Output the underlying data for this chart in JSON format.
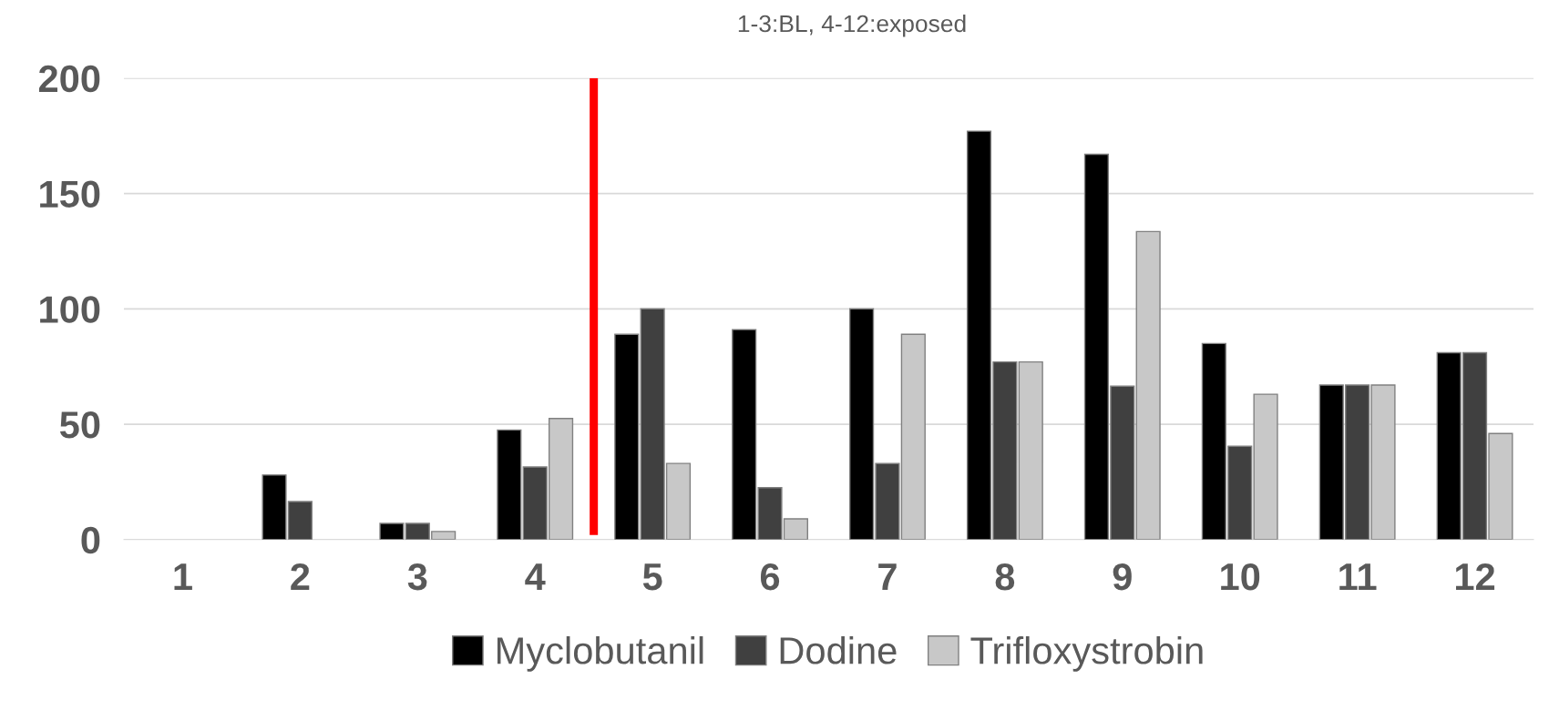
{
  "chart_data": {
    "type": "bar",
    "title": "1-3:BL, 4-12:exposed",
    "categories": [
      "1",
      "2",
      "3",
      "4",
      "5",
      "6",
      "7",
      "8",
      "9",
      "10",
      "11",
      "12"
    ],
    "series": [
      {
        "name": "Myclobutanil",
        "color": "#000000",
        "values": [
          null,
          28,
          7,
          47.5,
          89,
          91,
          100,
          177,
          167,
          85,
          67,
          81
        ]
      },
      {
        "name": "Dodine",
        "color": "#404040",
        "values": [
          null,
          16.5,
          7,
          31.5,
          100,
          22.5,
          33,
          77,
          66.5,
          40.5,
          67,
          81
        ]
      },
      {
        "name": "Trifloxystrobin",
        "color": "#c8c8c8",
        "values": [
          null,
          null,
          3.5,
          52.5,
          33,
          9,
          89,
          77,
          133.5,
          63,
          67,
          46
        ]
      }
    ],
    "ylim": [
      0,
      200
    ],
    "yticks": [
      0,
      50,
      100,
      150,
      200
    ],
    "grid": "y",
    "legend": "bottom"
  }
}
